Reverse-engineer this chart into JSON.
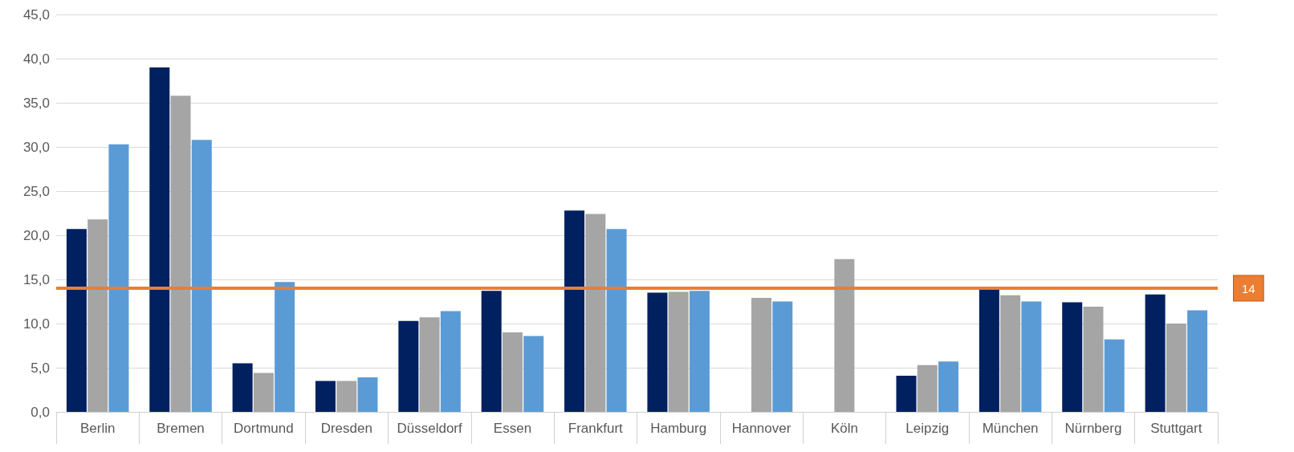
{
  "chart_data": {
    "type": "bar",
    "categories": [
      "Berlin",
      "Bremen",
      "Dortmund",
      "Dresden",
      "Düsseldorf",
      "Essen",
      "Frankfurt",
      "Hamburg",
      "Hannover",
      "Köln",
      "Leipzig",
      "München",
      "Nürnberg",
      "Stuttgart"
    ],
    "series": [
      {
        "color": "#002060",
        "values": [
          20.7,
          39.0,
          5.5,
          3.5,
          10.3,
          13.7,
          22.8,
          13.5,
          null,
          null,
          4.1,
          14.0,
          12.4,
          13.3
        ]
      },
      {
        "color": "#a5a5a5",
        "values": [
          21.8,
          35.8,
          4.4,
          3.5,
          10.7,
          9.0,
          22.4,
          13.6,
          12.9,
          17.3,
          5.3,
          13.2,
          11.9,
          10.0
        ]
      },
      {
        "color": "#5b9bd5",
        "values": [
          30.3,
          30.8,
          14.7,
          3.9,
          11.4,
          8.6,
          20.7,
          13.7,
          12.5,
          null,
          5.7,
          12.5,
          8.2,
          11.5
        ]
      }
    ],
    "ylim": [
      0,
      45
    ],
    "yticks": [
      {
        "value": 0,
        "label": "0,0"
      },
      {
        "value": 5,
        "label": "5,0"
      },
      {
        "value": 10,
        "label": "10,0"
      },
      {
        "value": 15,
        "label": "15,0"
      },
      {
        "value": 20,
        "label": "20,0"
      },
      {
        "value": 25,
        "label": "25,0"
      },
      {
        "value": 30,
        "label": "30,0"
      },
      {
        "value": 35,
        "label": "35,0"
      },
      {
        "value": 40,
        "label": "40,0"
      },
      {
        "value": 45,
        "label": "45,0"
      }
    ],
    "grid": "y",
    "ref_lines": [
      {
        "axis": "y",
        "value": 14,
        "label": "14",
        "color": "#ed7d31"
      }
    ]
  }
}
